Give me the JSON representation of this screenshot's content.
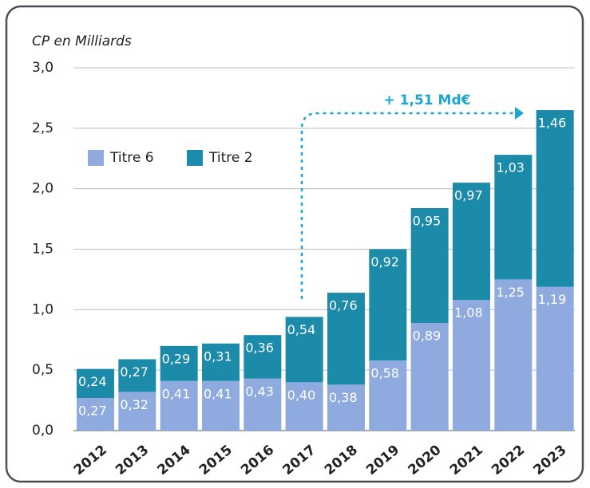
{
  "chart_data": {
    "type": "stacked-bar",
    "ylabel": "CP en Milliards",
    "annotation": "+ 1,51 Md€",
    "categories": [
      "2012",
      "2013",
      "2014",
      "2015",
      "2016",
      "2017",
      "2018",
      "2019",
      "2020",
      "2021",
      "2022",
      "2023"
    ],
    "series": [
      {
        "name": "Titre 6",
        "color": "#8eaade",
        "values": [
          0.27,
          0.32,
          0.41,
          0.41,
          0.43,
          0.4,
          0.38,
          0.58,
          0.89,
          1.08,
          1.25,
          1.19
        ],
        "value_labels": [
          "0,27",
          "0,32",
          "0,41",
          "0,41",
          "0,43",
          "0,40",
          "0,38",
          "0,58",
          "0,89",
          "1,08",
          "1,25",
          "1,19"
        ]
      },
      {
        "name": "Titre 2",
        "color": "#1c8aa9",
        "values": [
          0.24,
          0.27,
          0.29,
          0.31,
          0.36,
          0.54,
          0.76,
          0.92,
          0.95,
          0.97,
          1.03,
          1.46
        ],
        "value_labels": [
          "0,24",
          "0,27",
          "0,29",
          "0,31",
          "0,36",
          "0,54",
          "0,76",
          "0,92",
          "0,95",
          "0,97",
          "1,03",
          "1,46"
        ]
      }
    ],
    "ylim": [
      0,
      3
    ],
    "yticks": [
      {
        "value": 0,
        "label": "0,0"
      },
      {
        "value": 0.5,
        "label": "0,5"
      },
      {
        "value": 1,
        "label": "1,0"
      },
      {
        "value": 1.5,
        "label": "1,5"
      },
      {
        "value": 2,
        "label": "2,0"
      },
      {
        "value": 2.5,
        "label": "2,5"
      },
      {
        "value": 3,
        "label": "3,0"
      }
    ],
    "grid": true
  }
}
